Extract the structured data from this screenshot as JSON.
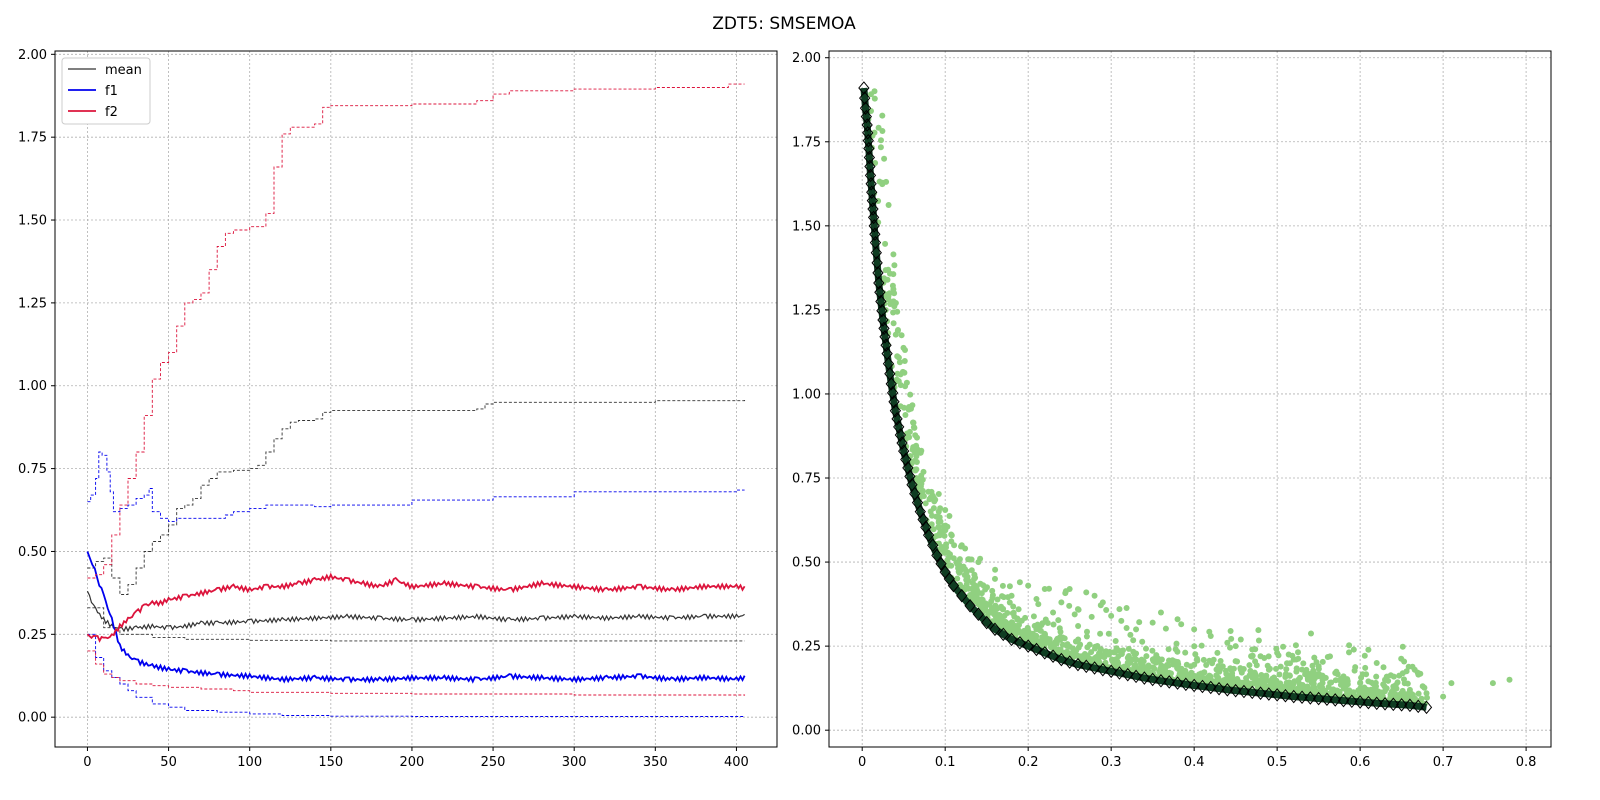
{
  "figure": {
    "title": "ZDT5: SMSEMOA"
  },
  "chart_data": [
    {
      "type": "line",
      "panel": "left",
      "xlim": [
        -20,
        425
      ],
      "ylim": [
        -0.09,
        2.01
      ],
      "xticks": [
        0,
        50,
        100,
        150,
        200,
        250,
        300,
        350,
        400
      ],
      "yticks": [
        0.0,
        0.25,
        0.5,
        0.75,
        1.0,
        1.25,
        1.5,
        1.75,
        2.0
      ],
      "ytick_labels": [
        "0.00",
        "0.25",
        "0.50",
        "0.75",
        "1.00",
        "1.25",
        "1.50",
        "1.75",
        "2.00"
      ],
      "grid": true,
      "legend": {
        "placement": "top-left",
        "entries": [
          "mean",
          "f1",
          "f2"
        ]
      },
      "series": [
        {
          "name": "mean",
          "color": "#333333",
          "x": [
            0,
            5,
            10,
            15,
            20,
            30,
            40,
            50,
            60,
            70,
            80,
            100,
            120,
            140,
            160,
            180,
            200,
            220,
            240,
            260,
            280,
            300,
            320,
            340,
            360,
            380,
            400,
            405
          ],
          "y": [
            0.38,
            0.33,
            0.3,
            0.28,
            0.27,
            0.275,
            0.28,
            0.275,
            0.28,
            0.29,
            0.29,
            0.295,
            0.3,
            0.305,
            0.31,
            0.305,
            0.3,
            0.305,
            0.31,
            0.3,
            0.305,
            0.31,
            0.305,
            0.31,
            0.305,
            0.31,
            0.31,
            0.31
          ]
        },
        {
          "name": "mean-upper",
          "color": "#333333",
          "x": [
            0,
            5,
            10,
            15,
            20,
            25,
            30,
            35,
            40,
            45,
            50,
            55,
            60,
            65,
            70,
            75,
            80,
            85,
            90,
            100,
            105,
            110,
            115,
            120,
            125,
            130,
            140,
            145,
            150,
            200,
            240,
            245,
            250,
            300,
            350,
            400,
            405
          ],
          "y": [
            0.45,
            0.47,
            0.48,
            0.42,
            0.37,
            0.4,
            0.45,
            0.5,
            0.53,
            0.55,
            0.58,
            0.63,
            0.64,
            0.66,
            0.7,
            0.72,
            0.74,
            0.74,
            0.745,
            0.75,
            0.76,
            0.8,
            0.84,
            0.87,
            0.89,
            0.895,
            0.9,
            0.92,
            0.925,
            0.925,
            0.93,
            0.945,
            0.95,
            0.95,
            0.955,
            0.955,
            0.957
          ]
        },
        {
          "name": "mean-lower",
          "color": "#333333",
          "x": [
            0,
            10,
            20,
            40,
            60,
            100,
            150,
            200,
            300,
            405
          ],
          "y": [
            0.33,
            0.27,
            0.25,
            0.24,
            0.235,
            0.232,
            0.23,
            0.23,
            0.23,
            0.23
          ]
        },
        {
          "name": "f1",
          "color": "#0000ee",
          "x": [
            0,
            3,
            6,
            10,
            15,
            20,
            25,
            30,
            40,
            50,
            60,
            70,
            80,
            100,
            120,
            140,
            160,
            180,
            200,
            220,
            240,
            260,
            280,
            300,
            320,
            340,
            360,
            380,
            400,
            405
          ],
          "y": [
            0.5,
            0.46,
            0.42,
            0.37,
            0.3,
            0.22,
            0.19,
            0.175,
            0.16,
            0.15,
            0.145,
            0.14,
            0.135,
            0.13,
            0.12,
            0.125,
            0.12,
            0.12,
            0.125,
            0.125,
            0.12,
            0.13,
            0.125,
            0.12,
            0.125,
            0.13,
            0.12,
            0.125,
            0.12,
            0.125
          ]
        },
        {
          "name": "f1-upper",
          "color": "#0000ee",
          "x": [
            0,
            2,
            5,
            7,
            9,
            12,
            14,
            16,
            20,
            25,
            30,
            35,
            38,
            40,
            45,
            50,
            55,
            60,
            70,
            85,
            90,
            100,
            110,
            130,
            140,
            150,
            200,
            250,
            300,
            350,
            400,
            405
          ],
          "y": [
            0.65,
            0.67,
            0.72,
            0.8,
            0.79,
            0.74,
            0.68,
            0.62,
            0.63,
            0.64,
            0.66,
            0.67,
            0.69,
            0.62,
            0.6,
            0.59,
            0.6,
            0.6,
            0.6,
            0.61,
            0.62,
            0.63,
            0.64,
            0.64,
            0.635,
            0.64,
            0.655,
            0.665,
            0.68,
            0.68,
            0.685,
            0.685
          ]
        },
        {
          "name": "f1-lower",
          "color": "#0000ee",
          "x": [
            0,
            5,
            10,
            15,
            20,
            25,
            30,
            40,
            50,
            60,
            80,
            100,
            120,
            150,
            200,
            300,
            405
          ],
          "y": [
            0.25,
            0.18,
            0.14,
            0.12,
            0.1,
            0.08,
            0.06,
            0.04,
            0.03,
            0.02,
            0.015,
            0.01,
            0.005,
            0.003,
            0.002,
            0.002,
            0.002
          ]
        },
        {
          "name": "f2",
          "color": "#dc143c",
          "x": [
            0,
            5,
            10,
            15,
            20,
            25,
            30,
            35,
            40,
            45,
            50,
            60,
            70,
            80,
            90,
            100,
            110,
            120,
            130,
            140,
            150,
            160,
            170,
            180,
            190,
            200,
            220,
            240,
            260,
            280,
            300,
            320,
            340,
            360,
            380,
            400,
            405
          ],
          "y": [
            0.25,
            0.245,
            0.24,
            0.25,
            0.28,
            0.3,
            0.32,
            0.34,
            0.35,
            0.35,
            0.36,
            0.37,
            0.38,
            0.39,
            0.4,
            0.39,
            0.4,
            0.4,
            0.41,
            0.42,
            0.43,
            0.42,
            0.41,
            0.4,
            0.42,
            0.4,
            0.41,
            0.4,
            0.39,
            0.41,
            0.4,
            0.39,
            0.4,
            0.39,
            0.4,
            0.4,
            0.395
          ]
        },
        {
          "name": "f2-upper",
          "color": "#dc143c",
          "x": [
            0,
            5,
            10,
            15,
            20,
            25,
            30,
            35,
            40,
            45,
            50,
            55,
            60,
            65,
            70,
            75,
            80,
            85,
            90,
            100,
            110,
            115,
            120,
            125,
            130,
            140,
            145,
            150,
            200,
            240,
            250,
            260,
            300,
            350,
            395,
            405
          ],
          "y": [
            0.42,
            0.43,
            0.46,
            0.55,
            0.64,
            0.72,
            0.8,
            0.91,
            1.02,
            1.07,
            1.1,
            1.18,
            1.25,
            1.26,
            1.28,
            1.35,
            1.42,
            1.46,
            1.47,
            1.48,
            1.52,
            1.66,
            1.76,
            1.78,
            1.78,
            1.79,
            1.84,
            1.845,
            1.85,
            1.86,
            1.88,
            1.89,
            1.895,
            1.9,
            1.91,
            1.91
          ]
        },
        {
          "name": "f2-lower",
          "color": "#dc143c",
          "x": [
            0,
            5,
            10,
            15,
            20,
            30,
            40,
            50,
            70,
            90,
            100,
            150,
            200,
            300,
            405
          ],
          "y": [
            0.2,
            0.16,
            0.13,
            0.12,
            0.11,
            0.1,
            0.095,
            0.09,
            0.085,
            0.08,
            0.075,
            0.072,
            0.07,
            0.067,
            0.065
          ]
        }
      ]
    },
    {
      "type": "scatter",
      "panel": "right",
      "xlim": [
        -0.04,
        0.83
      ],
      "ylim": [
        -0.05,
        2.02
      ],
      "xticks": [
        0.0,
        0.1,
        0.2,
        0.3,
        0.4,
        0.5,
        0.6,
        0.7,
        0.8
      ],
      "yticks": [
        0.0,
        0.25,
        0.5,
        0.75,
        1.0,
        1.25,
        1.5,
        1.75,
        2.0
      ],
      "ytick_labels": [
        "0.00",
        "0.25",
        "0.50",
        "0.75",
        "1.00",
        "1.25",
        "1.50",
        "1.75",
        "2.00"
      ],
      "grid": true,
      "front": {
        "color": "#0f3d22",
        "marker": "diamond",
        "x": [
          0.002,
          0.004,
          0.006,
          0.008,
          0.01,
          0.013,
          0.016,
          0.02,
          0.025,
          0.03,
          0.035,
          0.04,
          0.05,
          0.06,
          0.07,
          0.08,
          0.09,
          0.1,
          0.11,
          0.12,
          0.13,
          0.14,
          0.15,
          0.16,
          0.17,
          0.18,
          0.19,
          0.2,
          0.22,
          0.24,
          0.26,
          0.28,
          0.3,
          0.32,
          0.34,
          0.36,
          0.38,
          0.4,
          0.42,
          0.44,
          0.46,
          0.48,
          0.5,
          0.52,
          0.54,
          0.56,
          0.58,
          0.6,
          0.62,
          0.64,
          0.66,
          0.68
        ],
        "y": [
          1.91,
          1.85,
          1.8,
          1.73,
          1.65,
          1.55,
          1.45,
          1.33,
          1.22,
          1.12,
          1.03,
          0.95,
          0.83,
          0.73,
          0.65,
          0.58,
          0.52,
          0.47,
          0.43,
          0.4,
          0.37,
          0.345,
          0.32,
          0.3,
          0.285,
          0.27,
          0.26,
          0.25,
          0.23,
          0.21,
          0.195,
          0.185,
          0.175,
          0.165,
          0.155,
          0.147,
          0.14,
          0.133,
          0.127,
          0.12,
          0.115,
          0.11,
          0.105,
          0.1,
          0.096,
          0.092,
          0.088,
          0.084,
          0.08,
          0.077,
          0.074,
          0.068
        ]
      },
      "cloud": {
        "color": "#90d080",
        "x": [
          0.55,
          0.58,
          0.6,
          0.62,
          0.64,
          0.66,
          0.68,
          0.7,
          0.71,
          0.76,
          0.78,
          0.52,
          0.5,
          0.48,
          0.45,
          0.42,
          0.4,
          0.38,
          0.36,
          0.35,
          0.33,
          0.3,
          0.28,
          0.26,
          0.24,
          0.22,
          0.2,
          0.18,
          0.16,
          0.14,
          0.12,
          0.25,
          0.29,
          0.31,
          0.44,
          0.47,
          0.53,
          0.57,
          0.63,
          0.65,
          0.27,
          0.21,
          0.23,
          0.19
        ],
        "y": [
          0.19,
          0.16,
          0.14,
          0.2,
          0.13,
          0.12,
          0.11,
          0.1,
          0.14,
          0.14,
          0.15,
          0.21,
          0.23,
          0.22,
          0.25,
          0.28,
          0.3,
          0.33,
          0.35,
          0.32,
          0.3,
          0.34,
          0.4,
          0.36,
          0.38,
          0.42,
          0.43,
          0.4,
          0.45,
          0.5,
          0.55,
          0.42,
          0.38,
          0.36,
          0.26,
          0.24,
          0.18,
          0.17,
          0.15,
          0.11,
          0.41,
          0.39,
          0.35,
          0.44
        ]
      }
    }
  ]
}
